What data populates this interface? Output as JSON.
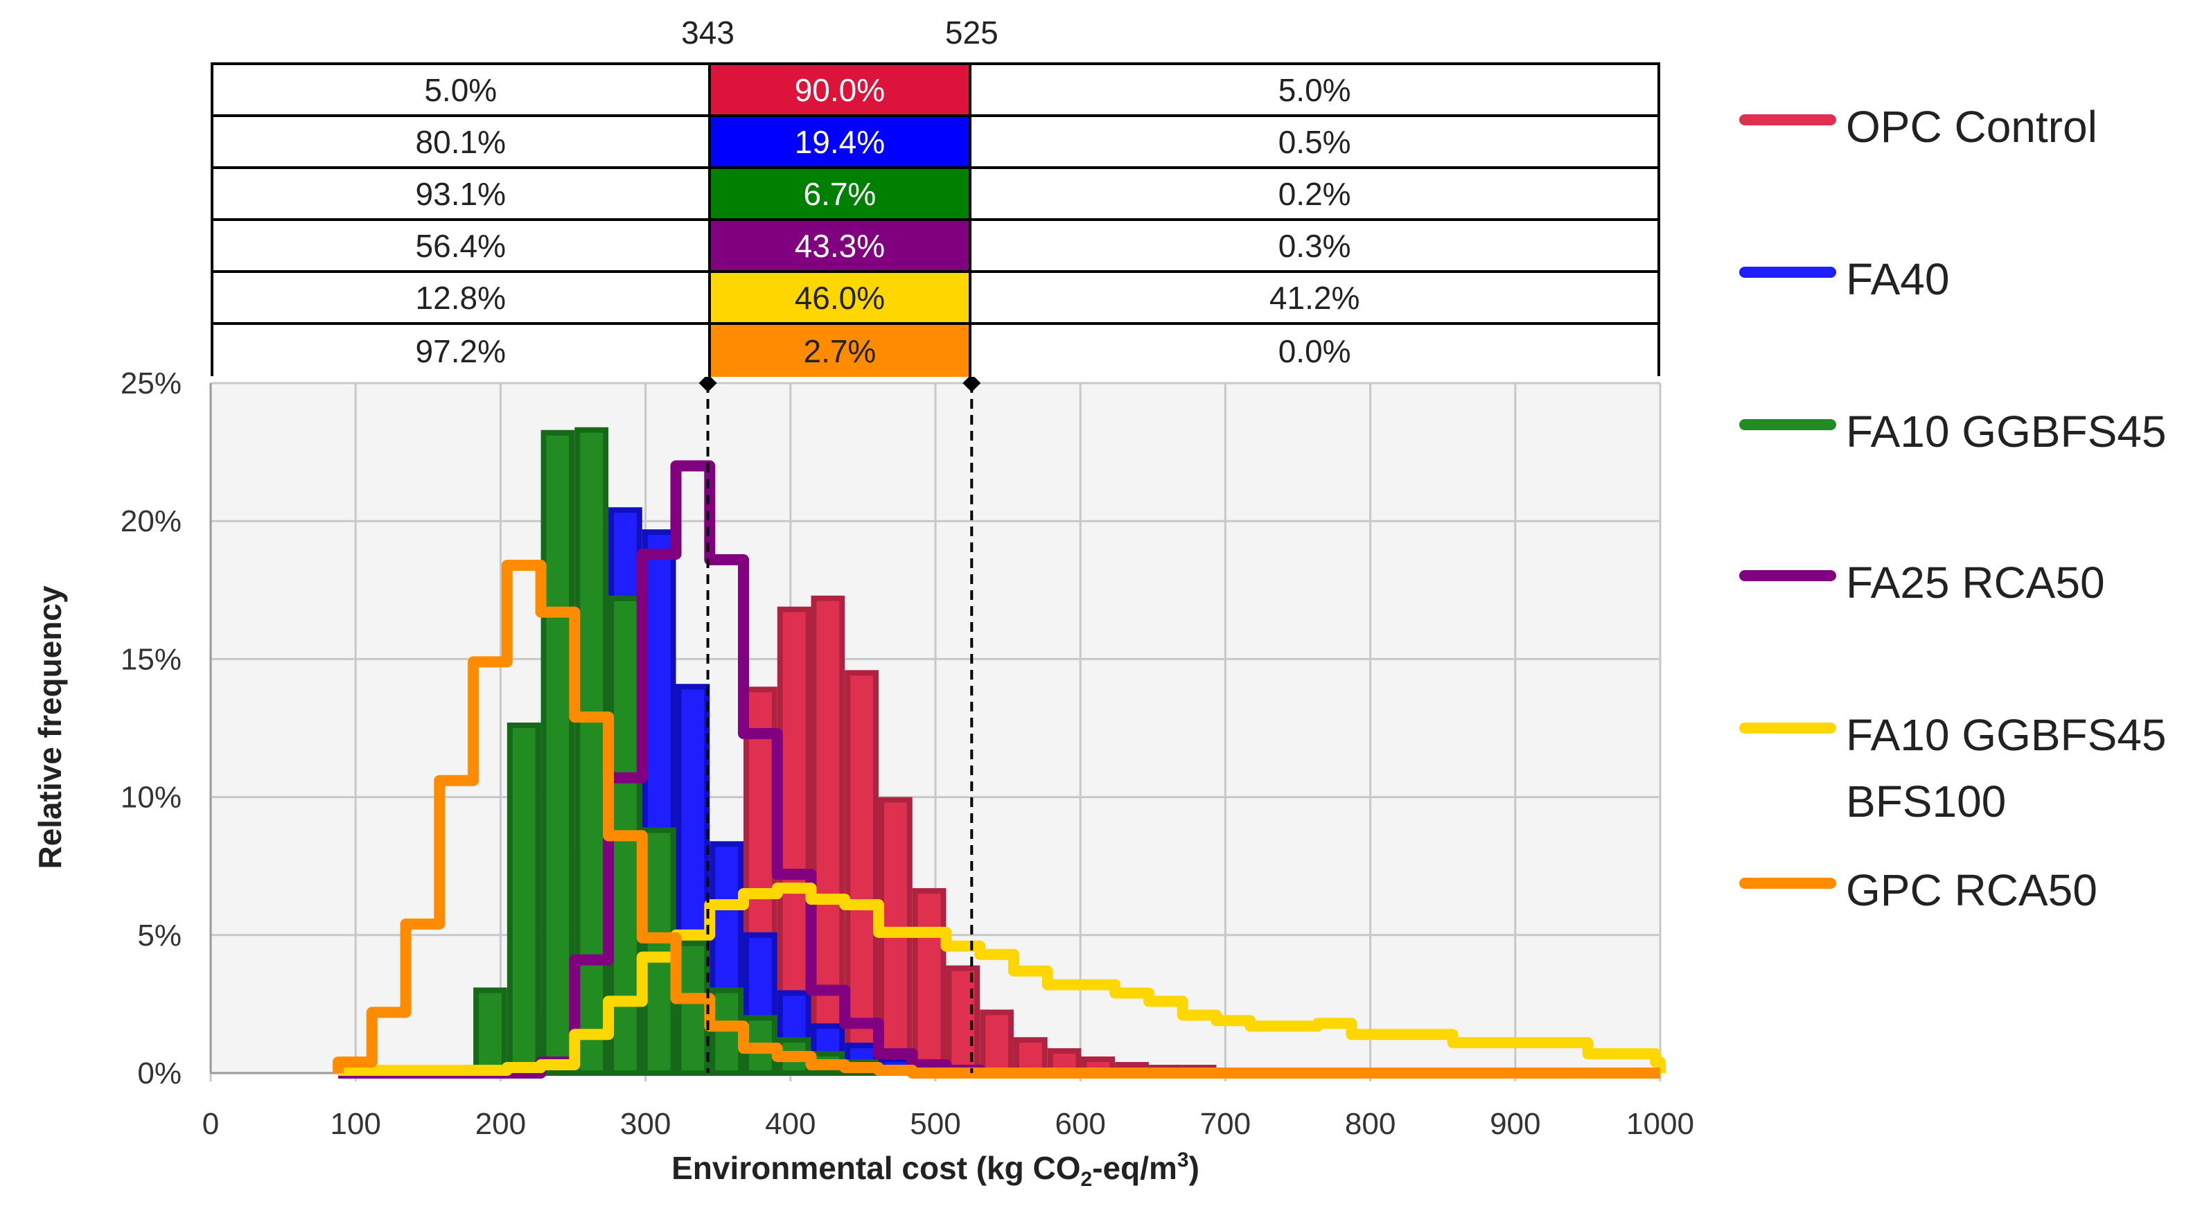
{
  "chart_data": {
    "type": "bar",
    "xlabel": "Environmental cost (kg CO2-eq/m3)",
    "xlabel_parts": {
      "pre": "Environmental cost (kg CO",
      "sub": "2",
      "mid": "-eq/m",
      "sup": "3",
      "post": ")"
    },
    "ylabel": "Relative frequency",
    "xlim": [
      0,
      1000
    ],
    "ylim": [
      0,
      25
    ],
    "x_ticks": [
      "0",
      "100",
      "200",
      "300",
      "400",
      "500",
      "600",
      "700",
      "800",
      "900",
      "1000"
    ],
    "y_ticks": [
      "0%",
      "5%",
      "10%",
      "15%",
      "20%",
      "25%"
    ],
    "grid": true,
    "legend_position": "right",
    "bin_start": 88,
    "bin_width": 23.3,
    "thresholds": [
      343,
      525
    ],
    "threshold_labels": [
      "343",
      "525"
    ],
    "series": [
      {
        "name": "OPC Control",
        "style": "bar",
        "color": "#E0304F",
        "stroke": "#B02340",
        "values": [
          0,
          0,
          0,
          0,
          0,
          0,
          0,
          0,
          0.3,
          1,
          3,
          8,
          13.9,
          16.8,
          17.2,
          14.5,
          9.9,
          6.6,
          3.8,
          2.2,
          1.2,
          0.8,
          0.5,
          0.3,
          0.2,
          0.2,
          0.1,
          0.1,
          0,
          0,
          0,
          0,
          0,
          0,
          0,
          0,
          0,
          0,
          0,
          0
        ]
      },
      {
        "name": "FA40",
        "style": "bar",
        "color": "#1E1EFF",
        "stroke": "#1010C0",
        "values": [
          0,
          0,
          0,
          0,
          0.1,
          0.5,
          2,
          8,
          20.4,
          19.6,
          14.0,
          8.3,
          5.0,
          2.9,
          1.7,
          1.0,
          0.5,
          0.2,
          0.1,
          0,
          0,
          0,
          0,
          0,
          0,
          0,
          0,
          0,
          0,
          0,
          0,
          0,
          0,
          0,
          0,
          0,
          0,
          0,
          0,
          0
        ]
      },
      {
        "name": "FA10 GGBFS45",
        "style": "bar",
        "color": "#228B22",
        "stroke": "#17691A",
        "values": [
          0,
          0,
          0,
          0.1,
          3.0,
          12.6,
          23.2,
          23.3,
          17.2,
          8.8,
          4.7,
          3.0,
          2.0,
          1.2,
          0.7,
          0.4,
          0.2,
          0.1,
          0,
          0,
          0,
          0,
          0,
          0,
          0,
          0,
          0,
          0,
          0,
          0,
          0,
          0,
          0,
          0,
          0,
          0,
          0,
          0,
          0,
          0
        ]
      },
      {
        "name": "FA25 RCA50",
        "style": "step",
        "color": "#800080",
        "values": [
          0,
          0,
          0,
          0,
          0,
          0,
          0.4,
          4.1,
          10.7,
          18.8,
          22.0,
          18.6,
          12.3,
          7.2,
          3.0,
          1.8,
          0.7,
          0.3,
          0.1,
          0,
          0,
          0,
          0,
          0,
          0,
          0,
          0,
          0,
          0,
          0,
          0,
          0,
          0,
          0,
          0,
          0,
          0,
          0,
          0,
          0
        ]
      },
      {
        "name": "FA10 GGBFS45 BFS100",
        "name_lines": [
          "FA10 GGBFS45",
          "BFS100"
        ],
        "style": "step",
        "color": "#FFD700",
        "values": [
          0.1,
          0.1,
          0.1,
          0.1,
          0.1,
          0.2,
          0.3,
          1.4,
          2.6,
          4.2,
          5.0,
          6.1,
          6.5,
          6.7,
          6.3,
          6.1,
          5.1,
          5.1,
          4.6,
          4.3,
          3.7,
          3.2,
          3.2,
          2.9,
          2.6,
          2.1,
          1.9,
          1.7,
          1.7,
          1.8,
          1.4,
          1.4,
          1.4,
          1.1,
          1.1,
          1.1,
          1.1,
          0.7,
          0.7,
          0.4
        ]
      },
      {
        "name": "GPC RCA50",
        "style": "step",
        "color": "#FF8C00",
        "values": [
          0.4,
          2.2,
          5.4,
          10.6,
          14.9,
          18.4,
          16.7,
          12.9,
          8.6,
          4.9,
          2.7,
          1.7,
          0.9,
          0.6,
          0.3,
          0.2,
          0.1,
          0,
          0,
          0,
          0,
          0,
          0,
          0,
          0,
          0,
          0,
          0,
          0,
          0,
          0,
          0,
          0,
          0,
          0,
          0,
          0,
          0,
          0,
          0
        ]
      }
    ],
    "table": {
      "rows": [
        {
          "series": "OPC Control",
          "below": "5.0%",
          "between": "90.0%",
          "above": "5.0%",
          "color": "#DC143C",
          "text_color": "#ffffff"
        },
        {
          "series": "FA40",
          "below": "80.1%",
          "between": "19.4%",
          "above": "0.5%",
          "color": "#0000FF",
          "text_color": "#ffffff"
        },
        {
          "series": "FA10 GGBFS45",
          "below": "93.1%",
          "between": "6.7%",
          "above": "0.2%",
          "color": "#008000",
          "text_color": "#ffffff"
        },
        {
          "series": "FA25 RCA50",
          "below": "56.4%",
          "between": "43.3%",
          "above": "0.3%",
          "color": "#800080",
          "text_color": "#ffffff"
        },
        {
          "series": "FA10 GGBFS45 BFS100",
          "below": "12.8%",
          "between": "46.0%",
          "above": "41.2%",
          "color": "#FFD700",
          "text_color": "#222222"
        },
        {
          "series": "GPC RCA50",
          "below": "97.2%",
          "between": "2.7%",
          "above": "0.0%",
          "color": "#FF8C00",
          "text_color": "#222222"
        }
      ]
    }
  }
}
